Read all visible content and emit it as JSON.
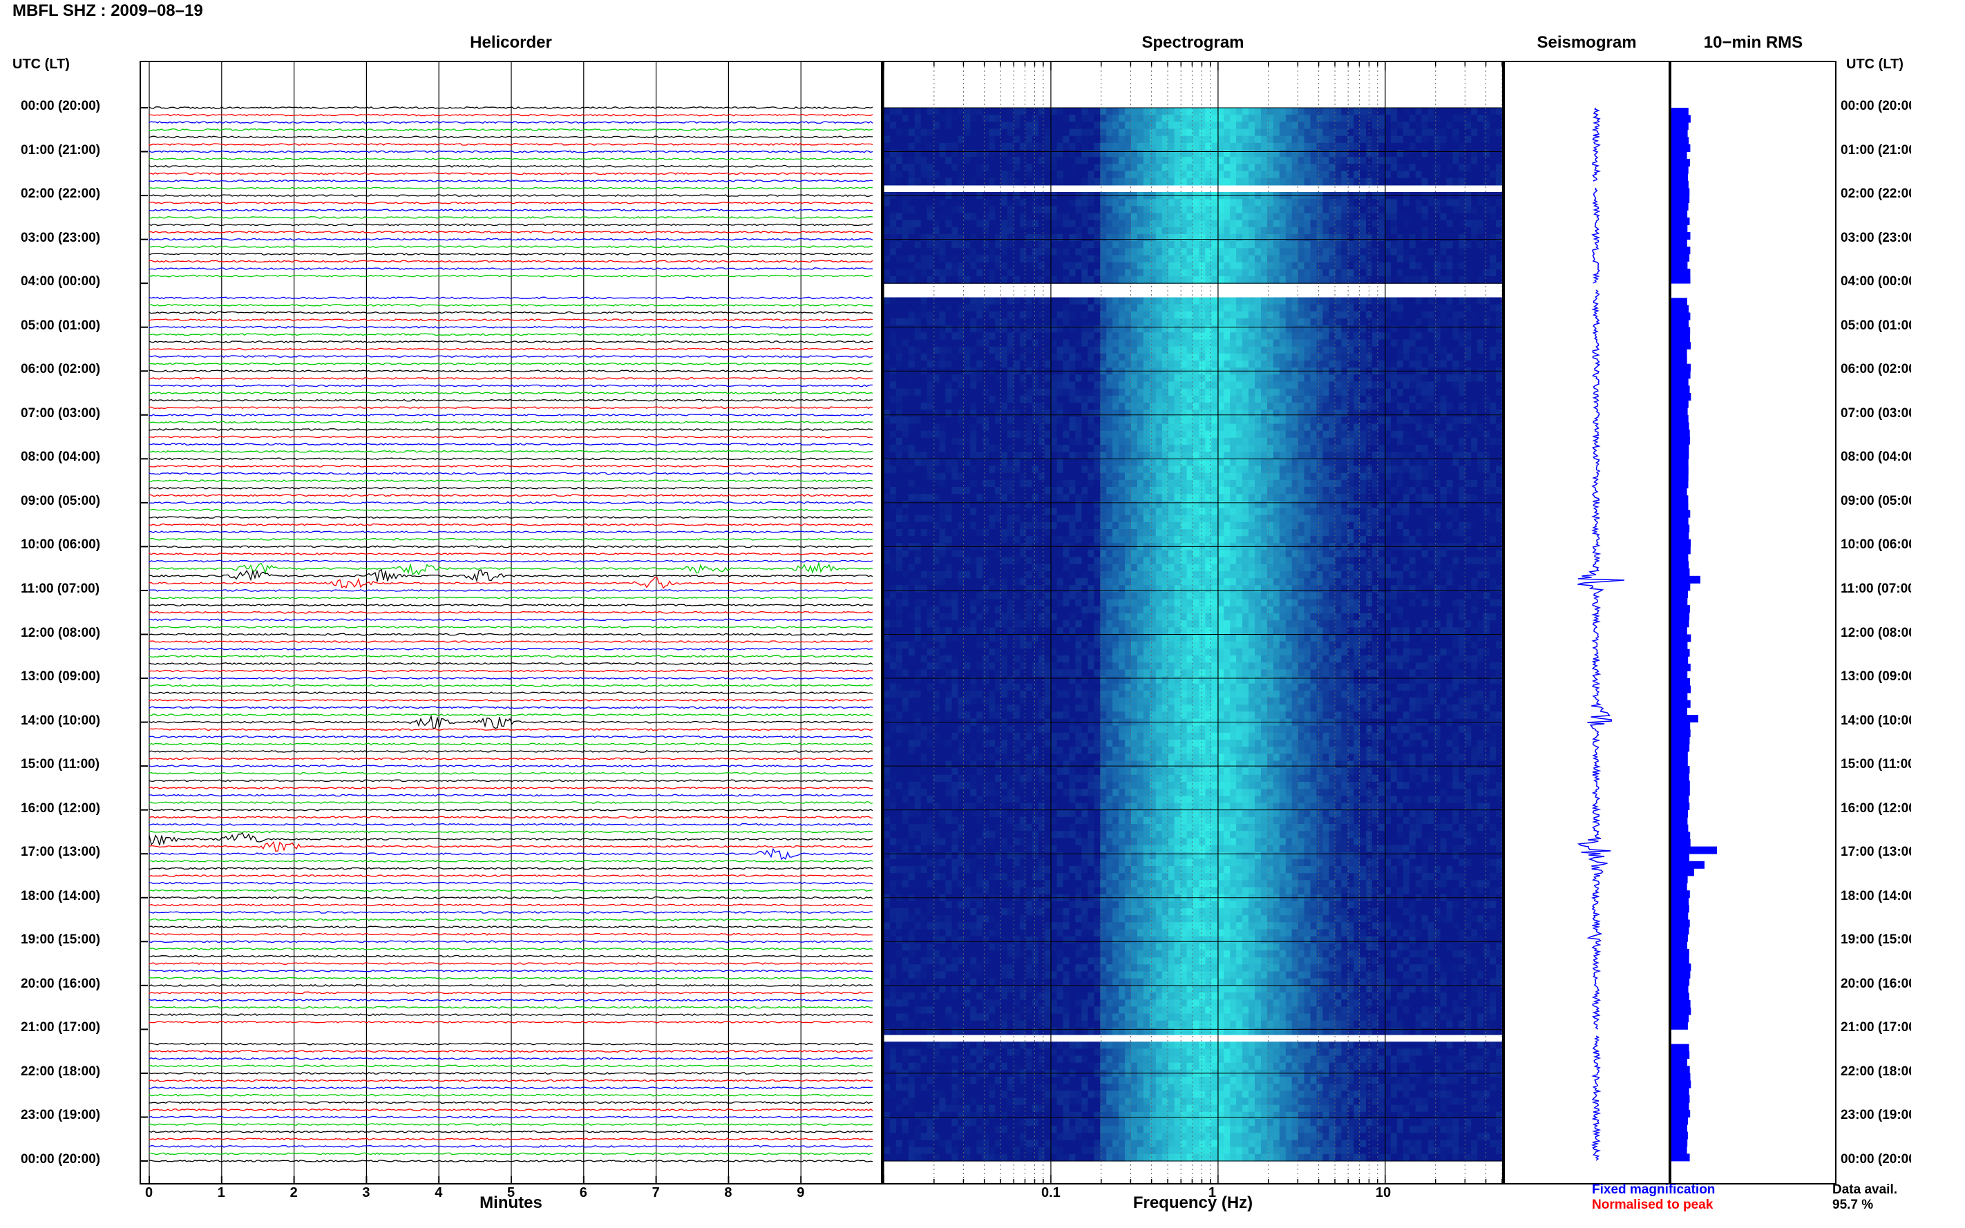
{
  "title": "MBFL SHZ : 2009–08–19",
  "panels": {
    "helicorder": "Helicorder",
    "spectrogram": "Spectrogram",
    "seismogram": "Seismogram",
    "rms": "10−min RMS"
  },
  "axis_header_left": "UTC (LT)",
  "axis_header_right": "UTC (LT)",
  "colors": {
    "trace_cycle": [
      "#000000",
      "#ff0000",
      "#0000ff",
      "#00cc00"
    ],
    "blue": "#0000ff",
    "red": "#ff0000",
    "spectrogram_low": "#0a1a8c",
    "spectrogram_high": "#34f0e8"
  },
  "legend": {
    "fixed": "Fixed magnification",
    "normalised": "Normalised to peak",
    "avail_label": "Data avail.",
    "avail_value": "95.7 %"
  },
  "chart_data": [
    {
      "type": "line",
      "name": "helicorder",
      "xlabel": "Minutes",
      "xticks": [
        0,
        1,
        2,
        3,
        4,
        5,
        6,
        7,
        8,
        9
      ],
      "xlim": [
        0,
        10
      ],
      "rows_per_hour": 6,
      "ylabels": [
        "00:00 (20:00)",
        "01:00 (21:00)",
        "02:00 (22:00)",
        "03:00 (23:00)",
        "04:00 (00:00)",
        "05:00 (01:00)",
        "06:00 (02:00)",
        "07:00 (03:00)",
        "08:00 (04:00)",
        "09:00 (05:00)",
        "10:00 (06:00)",
        "11:00 (07:00)",
        "12:00 (08:00)",
        "13:00 (09:00)",
        "14:00 (10:00)",
        "15:00 (11:00)",
        "16:00 (12:00)",
        "17:00 (13:00)",
        "18:00 (14:00)",
        "19:00 (15:00)",
        "20:00 (16:00)",
        "21:00 (17:00)",
        "22:00 (18:00)",
        "23:00 (19:00)",
        "00:00 (20:00)"
      ],
      "events": [
        {
          "hour": 10.5,
          "minute": 1.5
        },
        {
          "hour": 10.5,
          "minute": 3.7
        },
        {
          "hour": 10.5,
          "minute": 7.7
        },
        {
          "hour": 10.5,
          "minute": 9.2
        },
        {
          "hour": 10.67,
          "minute": 1.4
        },
        {
          "hour": 10.67,
          "minute": 3.2
        },
        {
          "hour": 10.67,
          "minute": 4.6
        },
        {
          "hour": 10.83,
          "minute": 2.8
        },
        {
          "hour": 10.83,
          "minute": 7.0
        },
        {
          "hour": 14.0,
          "minute": 3.9
        },
        {
          "hour": 14.0,
          "minute": 4.8
        },
        {
          "hour": 16.67,
          "minute": 0.1
        },
        {
          "hour": 16.67,
          "minute": 1.3
        },
        {
          "hour": 16.83,
          "minute": 1.8
        },
        {
          "hour": 17.0,
          "minute": 8.7
        }
      ],
      "gaps": [
        {
          "from_hour": 1.67,
          "to_hour": 1.83
        },
        {
          "from_hour": 4.0,
          "to_hour": 4.17
        },
        {
          "from_hour": 21.0,
          "to_hour": 21.17
        }
      ]
    },
    {
      "type": "heatmap",
      "name": "spectrogram",
      "xlabel": "Frequency (Hz)",
      "xscale": "log",
      "xlim": [
        0.01,
        50
      ],
      "xticks": [
        0.1,
        1,
        10
      ],
      "xticklabels": [
        "0.1",
        "1",
        "10"
      ],
      "peak_band_hz": [
        0.3,
        2.5
      ],
      "gaps_hours": [
        [
          1.67,
          1.83
        ],
        [
          4.0,
          4.17
        ],
        [
          21.0,
          21.17
        ]
      ]
    },
    {
      "type": "line",
      "name": "seismogram",
      "bursts": [
        {
          "hour": 10.75,
          "amplitude": 1.0
        },
        {
          "hour": 13.9,
          "amplitude": 0.75
        },
        {
          "hour": 16.85,
          "amplitude": 0.8
        },
        {
          "hour": 17.25,
          "amplitude": 0.35
        },
        {
          "hour": 18.9,
          "amplitude": 0.3
        }
      ]
    },
    {
      "type": "bar",
      "name": "rms",
      "orientation": "horizontal",
      "segments_per_hour": 6,
      "spikes": [
        {
          "hour": 16.85,
          "value": 2.2
        },
        {
          "hour": 17.1,
          "value": 1.6
        },
        {
          "hour": 17.35,
          "value": 1.1
        },
        {
          "hour": 10.7,
          "value": 1.4
        },
        {
          "hour": 13.9,
          "value": 1.3
        }
      ]
    }
  ]
}
